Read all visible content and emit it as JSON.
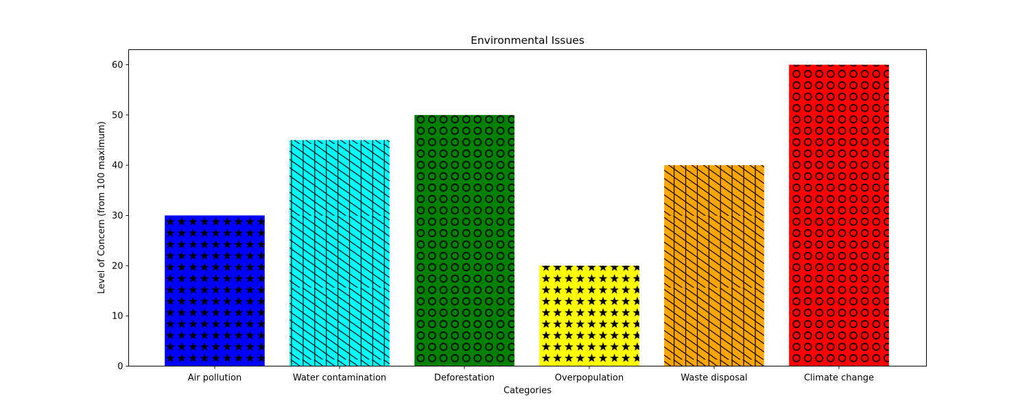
{
  "chart_data": {
    "type": "bar",
    "title": "Environmental Issues",
    "xlabel": "Categories",
    "ylabel": "Level of Concern (from 100 maximum)",
    "categories": [
      "Air pollution",
      "Water contamination",
      "Deforestation",
      "Overpopulation",
      "Waste disposal",
      "Climate change"
    ],
    "values": [
      30,
      45,
      50,
      20,
      40,
      60
    ],
    "colors": [
      "#0000ff",
      "#00ffff",
      "#008000",
      "#ffff00",
      "#ffa500",
      "#ff0000"
    ],
    "hatches": [
      "stars",
      "diagonal",
      "circles",
      "stars",
      "diagonal",
      "circles"
    ],
    "ylim": [
      0,
      63
    ],
    "yticks": [
      0,
      10,
      20,
      30,
      40,
      50,
      60
    ],
    "grid": false,
    "legend": "none"
  }
}
